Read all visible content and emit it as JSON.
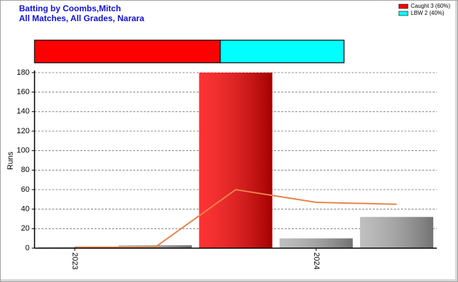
{
  "chart_data": {
    "type": "bar",
    "title": "Batting by Coombs,Mitch",
    "subtitle": "All Matches, All Grades, Narara",
    "y_label": "Runs",
    "categories": [
      "2023",
      null,
      null,
      "2024",
      null
    ],
    "values": [
      1,
      3,
      180,
      10,
      32
    ],
    "colors": [
      "#b0b0b0",
      "#b0b0b0",
      "#ff0000",
      "#b0b0b0",
      "#b0b0b0"
    ],
    "line": {
      "color": "#e8834a",
      "values": [
        1,
        1,
        60,
        47,
        45
      ]
    },
    "ylim": [
      0,
      180
    ],
    "yticks": [
      0,
      20,
      40,
      60,
      80,
      100,
      120,
      140,
      160,
      180
    ],
    "grid": true,
    "dismissals": {
      "xlim": [
        0,
        6.5
      ],
      "series": [
        {
          "name": "Caught 3 (60%)",
          "color": "#ff0000",
          "values": [
            3
          ]
        },
        {
          "name": "LBW 2 (40%)",
          "color": "#00ffff",
          "values": [
            2
          ]
        }
      ]
    }
  }
}
